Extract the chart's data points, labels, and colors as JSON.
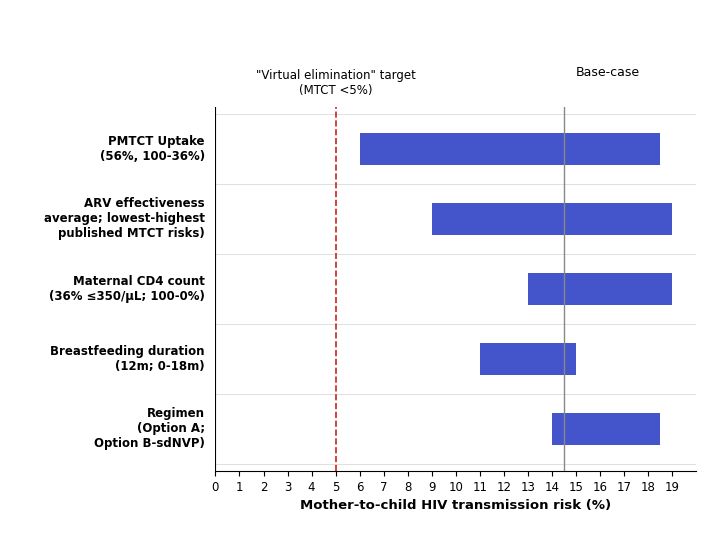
{
  "categories": [
    "PMTCT Uptake\n(56%, 100-36%)",
    "ARV effectiveness\naverage; lowest-highest\npublished MTCT risks)",
    "Maternal CD4 count\n(36% ≤350/μL; 100-0%)",
    "Breastfeeding duration\n(12m; 0-18m)",
    "Regimen\n(Option A;\nOption B-sdNVP)"
  ],
  "bar_low": [
    6.0,
    9.0,
    13.0,
    11.0,
    14.0
  ],
  "bar_high": [
    18.5,
    19.0,
    19.0,
    15.0,
    18.5
  ],
  "base_case": 14.5,
  "virtual_elimination": 5.0,
  "bar_color": "#4455cc",
  "xlim": [
    0,
    20
  ],
  "xticks": [
    0,
    1,
    2,
    3,
    4,
    5,
    6,
    7,
    8,
    9,
    10,
    11,
    12,
    13,
    14,
    15,
    16,
    17,
    18,
    19
  ],
  "xlabel": "Mother-to-child HIV transmission risk (%)",
  "virtual_elim_label": "\"Virtual elimination\" target\n(MTCT <5%)",
  "base_case_label": "Base-case",
  "virtual_elim_color": "#cc2222",
  "base_case_color": "#888888",
  "bar_height": 0.45
}
